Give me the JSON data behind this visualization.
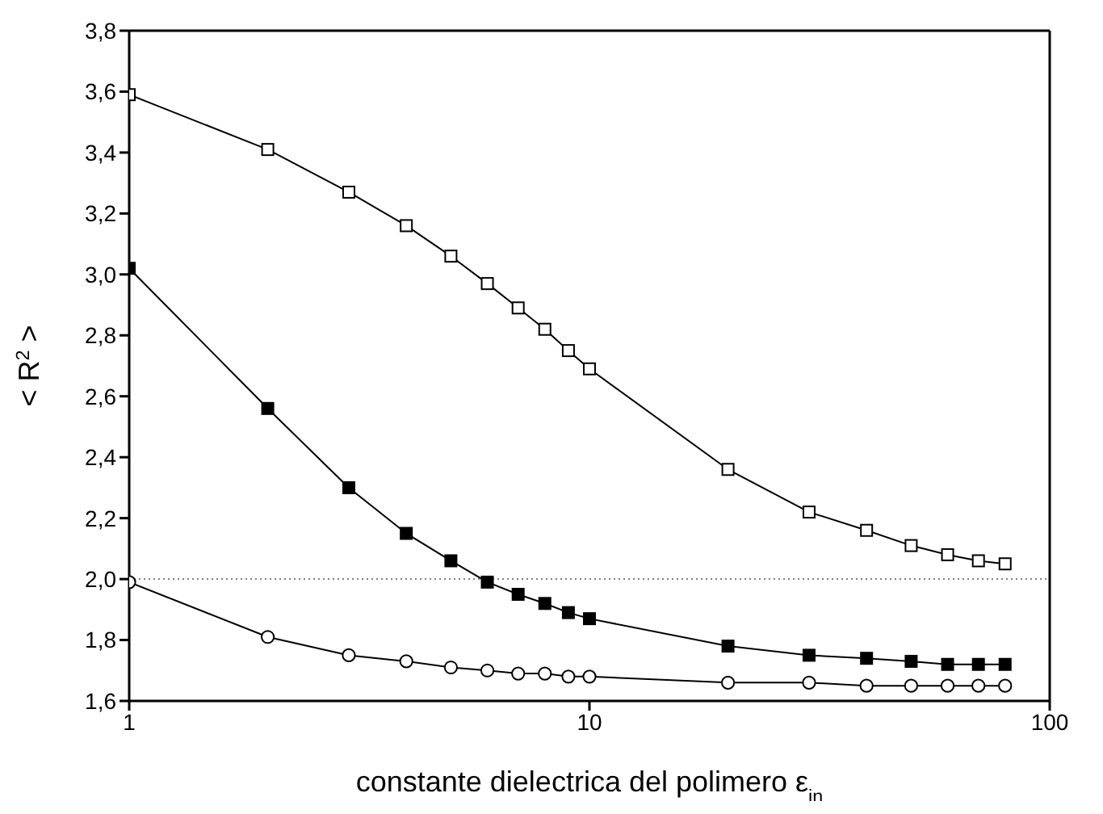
{
  "chart_data": {
    "type": "line",
    "xlabel": "constante dielectrica del polimero ε$_{in}$",
    "ylabel": "< R$^{2}$ >",
    "x": [
      1,
      2,
      3,
      4,
      5,
      6,
      7,
      8,
      9,
      10,
      20,
      30,
      40,
      50,
      60,
      70,
      80
    ],
    "series": [
      {
        "color": "#000000",
        "marker": "square",
        "values": [
          3.59,
          3.41,
          3.27,
          3.16,
          3.06,
          2.97,
          2.89,
          2.82,
          2.75,
          2.69,
          2.36,
          2.22,
          2.16,
          2.11,
          2.08,
          2.06,
          2.05
        ]
      },
      {
        "color": "#000000",
        "marker": "square",
        "values": [
          3.02,
          2.56,
          2.3,
          2.15,
          2.06,
          1.99,
          1.95,
          1.92,
          1.89,
          1.87,
          1.78,
          1.75,
          1.74,
          1.73,
          1.72,
          1.72,
          1.72
        ]
      },
      {
        "color": "#000000",
        "marker": "circle",
        "values": [
          1.99,
          1.81,
          1.75,
          1.73,
          1.71,
          1.7,
          1.69,
          1.69,
          1.68,
          1.68,
          1.66,
          1.66,
          1.65,
          1.65,
          1.65,
          1.65,
          1.65
        ]
      }
    ],
    "log": "x",
    "xlim": [
      1,
      100
    ],
    "xticks": [
      1,
      10,
      100
    ],
    "ylim": [
      1.6,
      3.8
    ],
    "yticks": [
      {
        "value": 1.6,
        "label": "1,6"
      },
      {
        "value": 1.8,
        "label": "1,8"
      },
      {
        "value": 2.0,
        "label": "2,0"
      },
      {
        "value": 2.2,
        "label": "2,2"
      },
      {
        "value": 2.4,
        "label": "2,4"
      },
      {
        "value": 2.6,
        "label": "2,6"
      },
      {
        "value": 2.8,
        "label": "2,8"
      },
      {
        "value": 3.0,
        "label": "3,0"
      },
      {
        "value": 3.2,
        "label": "3,2"
      },
      {
        "value": 3.4,
        "label": "3,4"
      },
      {
        "value": 3.6,
        "label": "3,6"
      },
      {
        "value": 3.8,
        "label": "3,8"
      }
    ],
    "ref_lines": [
      {
        "axis": "y",
        "value": 2.0,
        "color": "#808080",
        "line_style": "dotted"
      }
    ],
    "grid": false,
    "line_style": "solid"
  }
}
